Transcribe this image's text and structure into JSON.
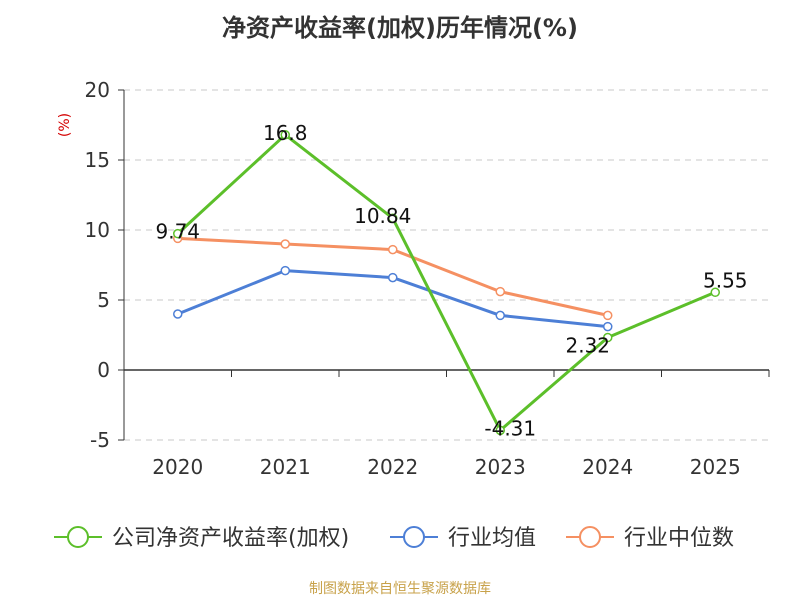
{
  "chart_data": {
    "type": "line",
    "title": "净资产收益率(加权)历年情况(%)",
    "ylabel": "(%)",
    "xlabel": "",
    "categories": [
      "2020",
      "2021",
      "2022",
      "2023",
      "2024",
      "2025"
    ],
    "ylim": [
      -5,
      20
    ],
    "yticks": [
      -5,
      0,
      5,
      10,
      15,
      20
    ],
    "grid": true,
    "legend_position": "bottom",
    "series": [
      {
        "name": "公司净资产收益率(加权)",
        "color": "#5cbf2a",
        "values": [
          9.74,
          16.8,
          10.84,
          -4.31,
          2.32,
          5.55
        ],
        "labels": [
          "9.74",
          "16.8",
          "10.84",
          "-4.31",
          "2.32",
          "5.55"
        ]
      },
      {
        "name": "行业均值",
        "color": "#4d7fd6",
        "values": [
          4.0,
          7.1,
          6.6,
          3.9,
          3.1,
          null
        ]
      },
      {
        "name": "行业中位数",
        "color": "#f59062",
        "values": [
          9.4,
          9.0,
          8.6,
          5.6,
          3.9,
          null
        ]
      }
    ],
    "source": "制图数据来自恒生聚源数据库"
  }
}
